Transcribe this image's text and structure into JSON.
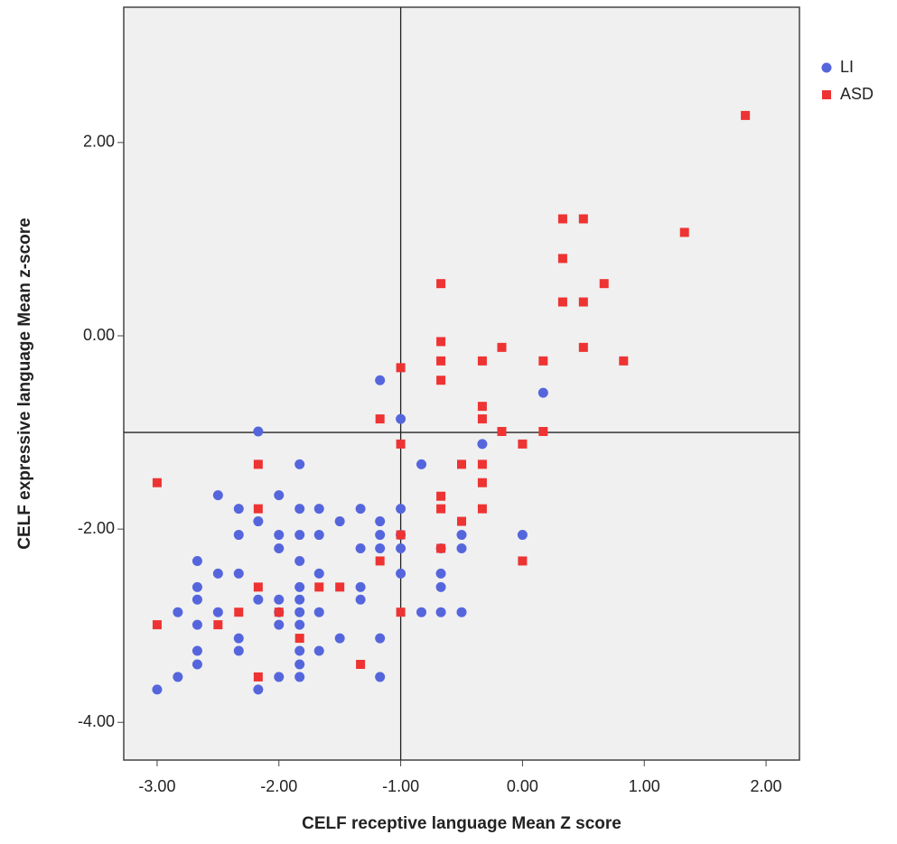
{
  "chart_data": {
    "type": "scatter",
    "x_label": "CELF receptive language Mean Z score",
    "y_label": "CELF expressive language Mean  z-score",
    "xlim": [
      -3.274,
      2.274
    ],
    "ylim": [
      -4.39,
      3.4
    ],
    "xticks": [
      {
        "value": -3,
        "label": "-3.00"
      },
      {
        "value": -2,
        "label": "-2.00"
      },
      {
        "value": -1,
        "label": "-1.00"
      },
      {
        "value": 0,
        "label": "0.00"
      },
      {
        "value": 1,
        "label": "1.00"
      },
      {
        "value": 2,
        "label": "2.00"
      }
    ],
    "yticks": [
      {
        "value": -4,
        "label": "-4.00"
      },
      {
        "value": -2,
        "label": "-2.00"
      },
      {
        "value": 0,
        "label": "0.00"
      },
      {
        "value": 2,
        "label": "2.00"
      }
    ],
    "reference_lines": {
      "x": -1,
      "y": -1
    },
    "legend": "right",
    "series": [
      {
        "name": "LI",
        "color": "#5566dd",
        "marker": "circle",
        "x": [
          -3,
          -2.83,
          -2.83,
          -2.67,
          -2.67,
          -2.67,
          -2.67,
          -2.67,
          -2.67,
          -2.5,
          -2.5,
          -2.5,
          -2.33,
          -2.33,
          -2.33,
          -2.33,
          -2.33,
          -2.17,
          -2.17,
          -2.17,
          -2.17,
          -2,
          -2,
          -2,
          -2,
          -2,
          -2,
          -2,
          -1.83,
          -1.83,
          -1.83,
          -1.83,
          -1.83,
          -1.83,
          -1.83,
          -1.83,
          -1.83,
          -1.83,
          -1.83,
          -1.67,
          -1.67,
          -1.67,
          -1.67,
          -1.67,
          -1.5,
          -1.5,
          -1.33,
          -1.33,
          -1.33,
          -1.33,
          -1.17,
          -1.17,
          -1.17,
          -1.17,
          -1.17,
          -1.17,
          -1,
          -1,
          -1,
          -1,
          -1,
          -0.83,
          -0.83,
          -0.67,
          -0.67,
          -0.67,
          -0.67,
          -0.5,
          -0.5,
          -0.5,
          -0.33,
          0,
          0.17
        ],
        "values": [
          -3.66,
          -3.53,
          -2.86,
          -2.33,
          -2.6,
          -2.73,
          -2.99,
          -3.26,
          -3.4,
          -1.65,
          -2.46,
          -2.86,
          -1.79,
          -2.06,
          -2.46,
          -3.13,
          -3.26,
          -0.99,
          -1.92,
          -2.73,
          -3.66,
          -1.65,
          -2.06,
          -2.2,
          -2.73,
          -2.86,
          -2.99,
          -3.53,
          -1.33,
          -1.79,
          -2.06,
          -2.33,
          -2.6,
          -2.73,
          -2.86,
          -2.99,
          -3.26,
          -3.4,
          -3.53,
          -1.79,
          -2.06,
          -2.46,
          -2.86,
          -3.26,
          -1.92,
          -3.13,
          -1.79,
          -2.2,
          -2.6,
          -2.73,
          -0.46,
          -1.92,
          -2.06,
          -2.2,
          -3.13,
          -3.53,
          -0.86,
          -1.79,
          -2.06,
          -2.2,
          -2.46,
          -1.33,
          -2.86,
          -2.2,
          -2.46,
          -2.6,
          -2.86,
          -2.06,
          -2.2,
          -2.86,
          -1.12,
          -2.06,
          -0.59
        ]
      },
      {
        "name": "ASD",
        "color": "#ee3333",
        "marker": "square",
        "x": [
          -3,
          -3,
          -2.5,
          -2.33,
          -2.17,
          -2.17,
          -2.17,
          -2.17,
          -2,
          -1.83,
          -1.67,
          -1.5,
          -1.33,
          -1.17,
          -1.17,
          -1,
          -1,
          -1,
          -1,
          -0.67,
          -0.67,
          -0.67,
          -0.67,
          -0.67,
          -0.67,
          -0.67,
          -0.5,
          -0.5,
          -0.33,
          -0.33,
          -0.33,
          -0.33,
          -0.33,
          -0.33,
          -0.17,
          -0.17,
          0,
          0,
          0.17,
          0.17,
          0.33,
          0.33,
          0.33,
          0.5,
          0.5,
          0.5,
          0.67,
          0.83,
          1.33,
          1.83
        ],
        "values": [
          -1.52,
          -2.99,
          -2.99,
          -2.86,
          -1.33,
          -1.79,
          -2.6,
          -3.53,
          -2.86,
          -3.13,
          -2.6,
          -2.6,
          -3.4,
          -0.86,
          -2.33,
          -0.33,
          -1.12,
          -2.06,
          -2.86,
          0.54,
          -0.06,
          -0.26,
          -0.46,
          -1.66,
          -1.79,
          -2.2,
          -1.33,
          -1.92,
          -0.26,
          -0.73,
          -0.86,
          -1.33,
          -1.52,
          -1.79,
          -0.12,
          -0.99,
          -1.12,
          -2.33,
          -0.26,
          -0.99,
          1.21,
          0.8,
          0.35,
          1.21,
          0.35,
          -0.12,
          0.54,
          -0.26,
          1.07,
          2.28
        ]
      }
    ]
  }
}
